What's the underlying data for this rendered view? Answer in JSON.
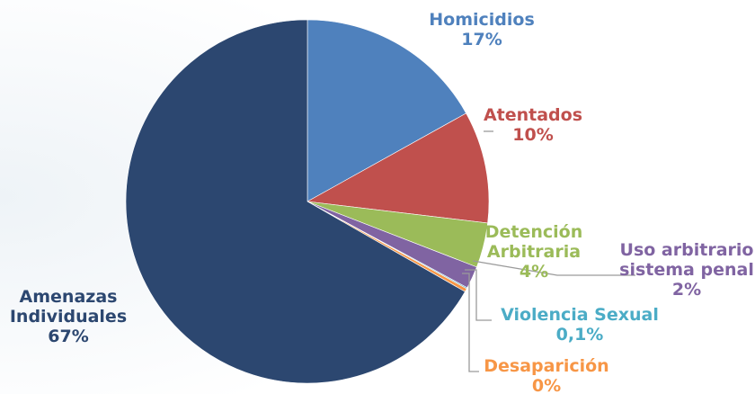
{
  "chart_data": {
    "type": "pie",
    "title": "",
    "slices": [
      {
        "label_lines": [
          "Homicidios"
        ],
        "pct_label": "17%",
        "value": 17,
        "color": "#4f81bd"
      },
      {
        "label_lines": [
          "Atentados"
        ],
        "pct_label": "10%",
        "value": 10,
        "color": "#c0504d"
      },
      {
        "label_lines": [
          "Detención",
          "Arbitraria"
        ],
        "pct_label": "4%",
        "value": 4,
        "color": "#9bbb59"
      },
      {
        "label_lines": [
          "Uso arbitrario",
          "sistema penal"
        ],
        "pct_label": "2%",
        "value": 2,
        "color": "#8064a2"
      },
      {
        "label_lines": [
          "Violencia Sexual"
        ],
        "pct_label": "0,1%",
        "value": 0.1,
        "color": "#4bacc6"
      },
      {
        "label_lines": [
          "Desaparición"
        ],
        "pct_label": "0%",
        "value": 0.3,
        "color": "#f79646"
      },
      {
        "label_lines": [
          "Amenazas",
          "Individuales"
        ],
        "pct_label": "67%",
        "value": 67,
        "color": "#2c4770"
      }
    ]
  }
}
